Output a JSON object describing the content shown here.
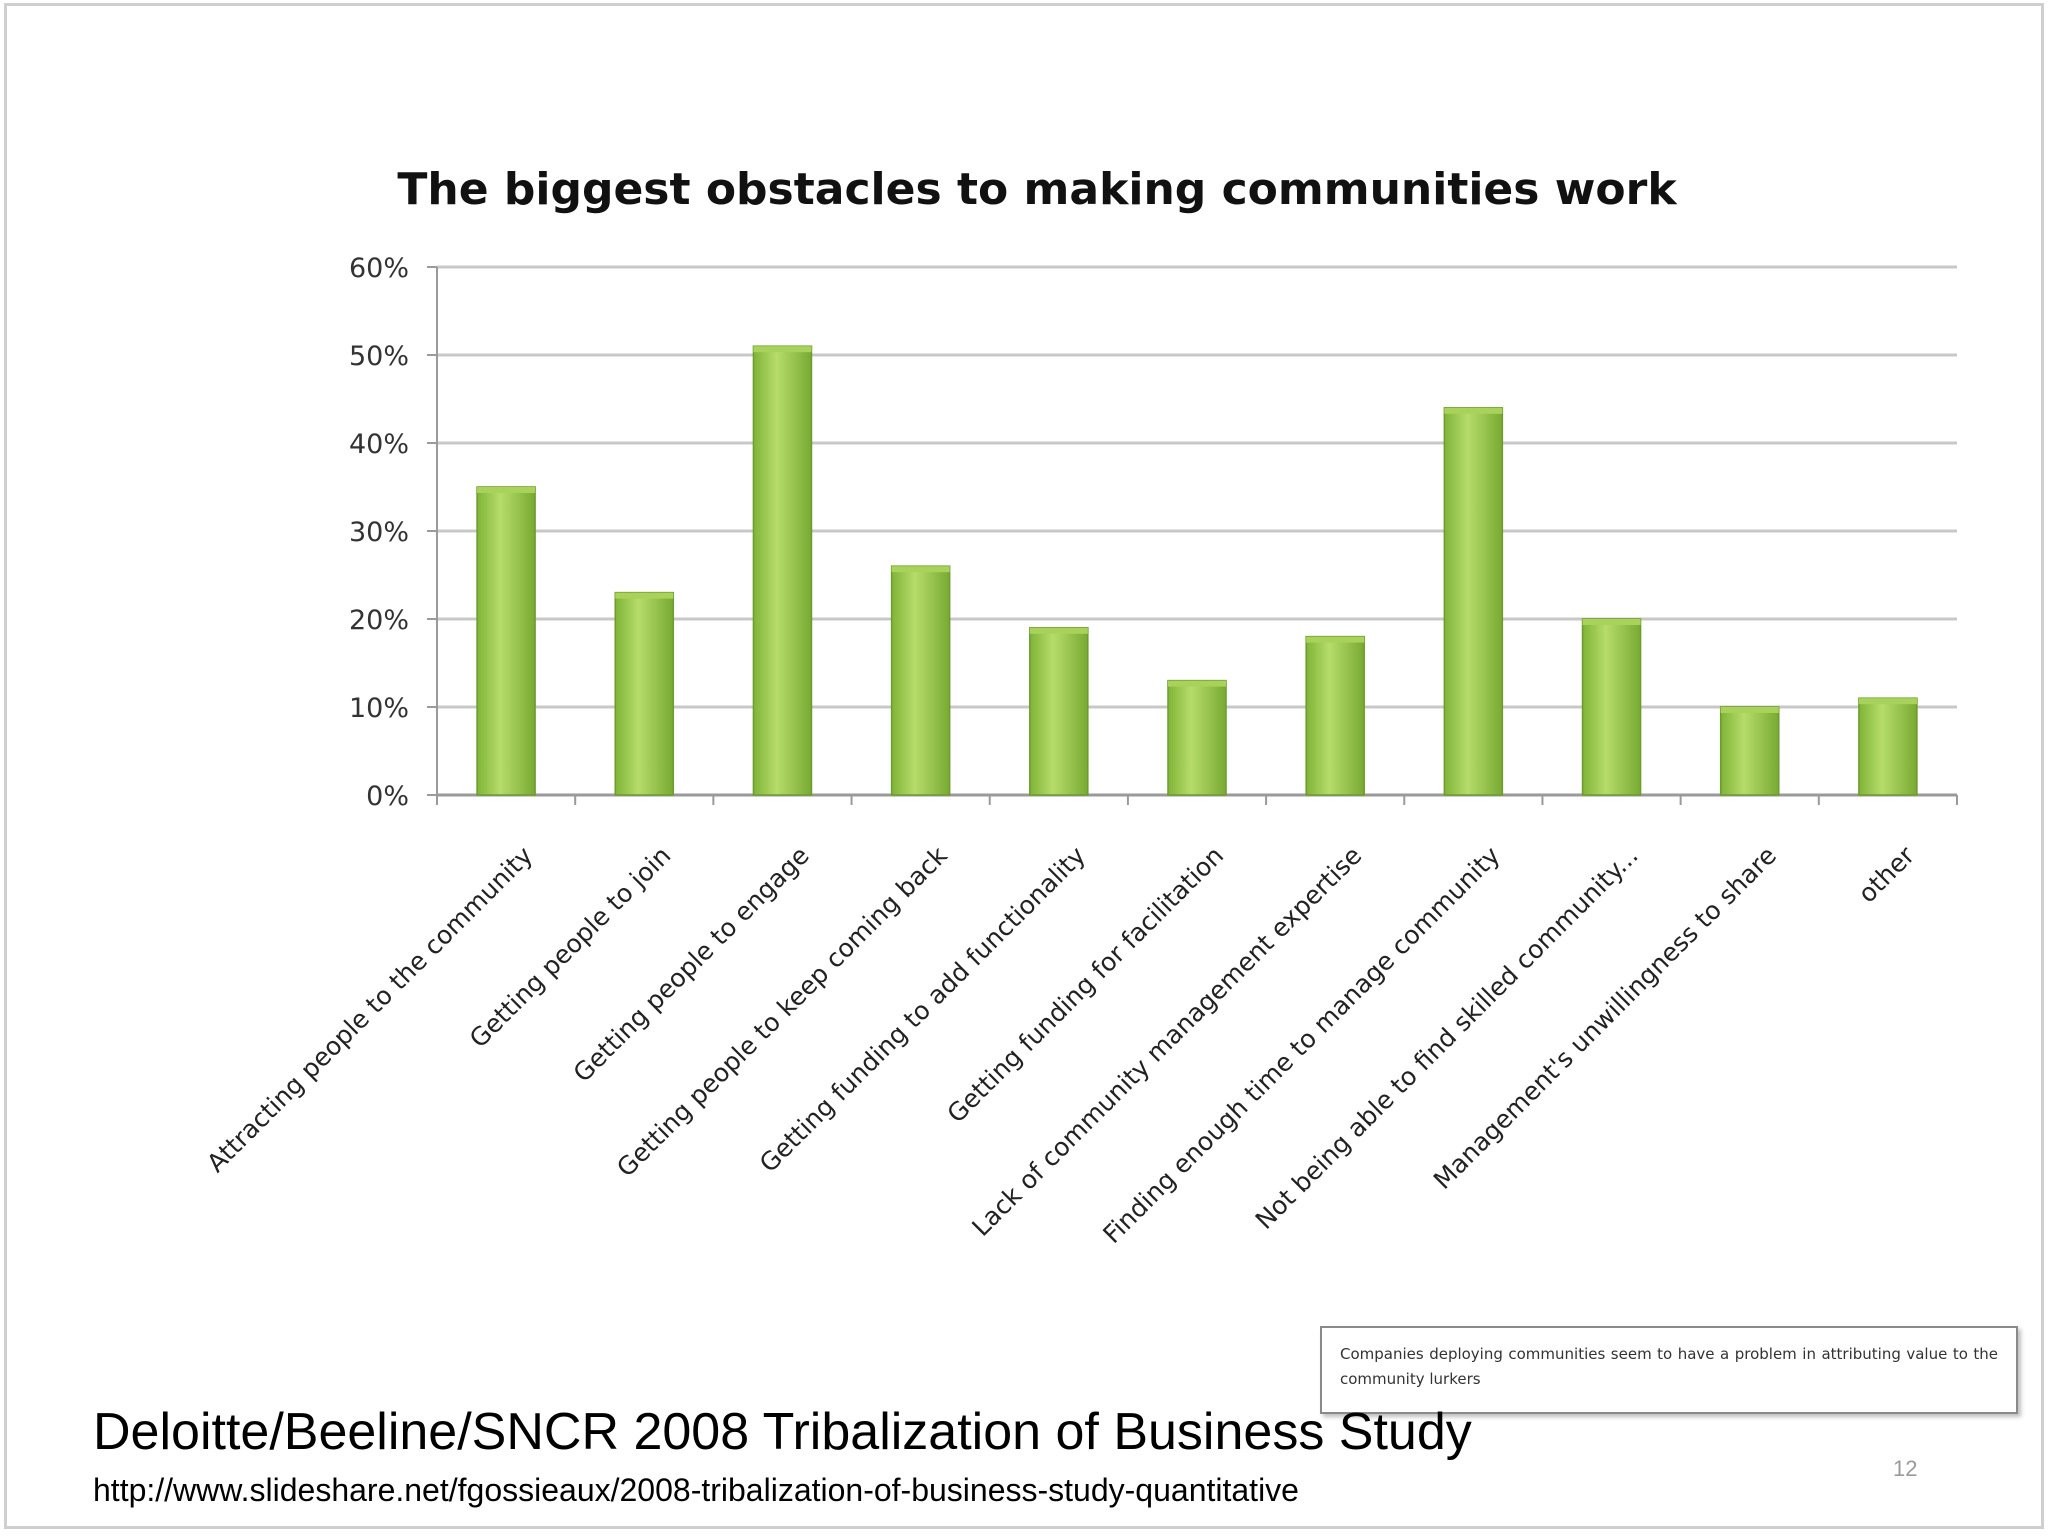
{
  "chart_data": {
    "type": "bar",
    "title": "The biggest obstacles to making communities work",
    "categories": [
      "Attracting people to the community",
      "Getting people to join",
      "Getting people to engage",
      "Getting people to keep coming back",
      "Getting funding to add functionality",
      "Getting funding for facilitation",
      "Lack of community management expertise",
      "Finding enough time to manage community",
      "Not being able to find skilled community...",
      "Management's unwillingness to share",
      "other"
    ],
    "values": [
      35,
      23,
      51,
      26,
      19,
      13,
      18,
      44,
      20,
      10,
      11
    ],
    "ylim": [
      0,
      60
    ],
    "yticks": [
      0,
      10,
      20,
      30,
      40,
      50,
      60
    ],
    "ytick_labels": [
      "0%",
      "10%",
      "20%",
      "30%",
      "40%",
      "50%",
      "60%"
    ],
    "xlabel": "",
    "ylabel": "",
    "grid": true,
    "bar_color": "#8cc63f",
    "bar_edge_color": "#6e9b2e"
  },
  "note": "Companies deploying communities seem to have a problem in attributing value to the community lurkers",
  "source": {
    "title": "Deloitte/Beeline/SNCR 2008 Tribalization of Business Study",
    "url": "http://www.slideshare.net/fgossieaux/2008-tribalization-of-business-study-quantitative"
  },
  "page_number": "12"
}
